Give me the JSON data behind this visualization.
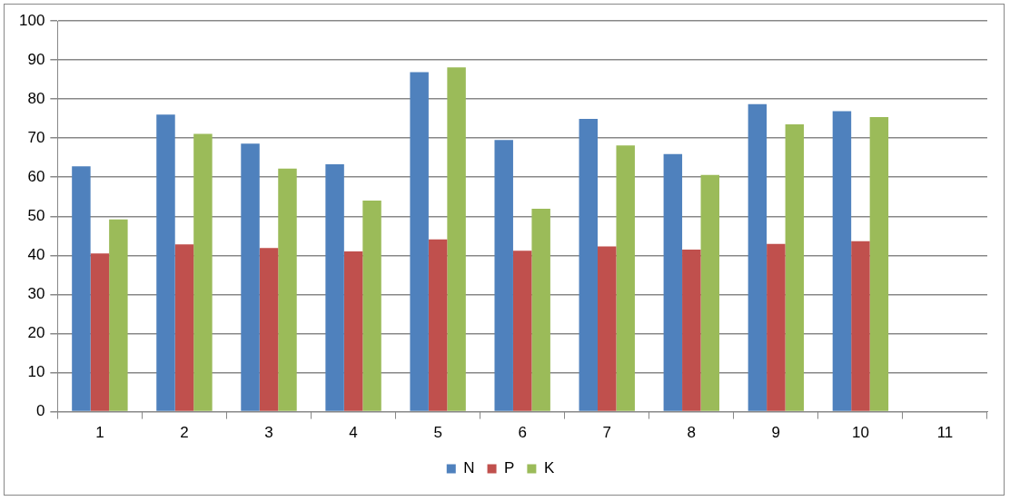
{
  "chart_data": {
    "type": "bar",
    "categories": [
      "1",
      "2",
      "3",
      "4",
      "5",
      "6",
      "7",
      "8",
      "9",
      "10",
      "11"
    ],
    "series": [
      {
        "name": "N",
        "color": "#4f81bd",
        "values": [
          62.8,
          76.0,
          68.6,
          63.3,
          86.9,
          69.5,
          74.9,
          65.9,
          78.7,
          76.9,
          null
        ]
      },
      {
        "name": "P",
        "color": "#c0504d",
        "values": [
          40.5,
          42.8,
          41.9,
          41.0,
          44.1,
          41.2,
          42.3,
          41.5,
          42.9,
          43.6,
          null
        ]
      },
      {
        "name": "K",
        "color": "#9bbb59",
        "values": [
          49.2,
          71.1,
          62.2,
          54.0,
          88.1,
          51.9,
          68.1,
          60.6,
          73.5,
          75.4,
          null
        ]
      }
    ],
    "ylim": [
      0,
      100
    ],
    "yticks": [
      0,
      10,
      20,
      30,
      40,
      50,
      60,
      70,
      80,
      90,
      100
    ],
    "grid": "y",
    "legend": "bottom"
  }
}
